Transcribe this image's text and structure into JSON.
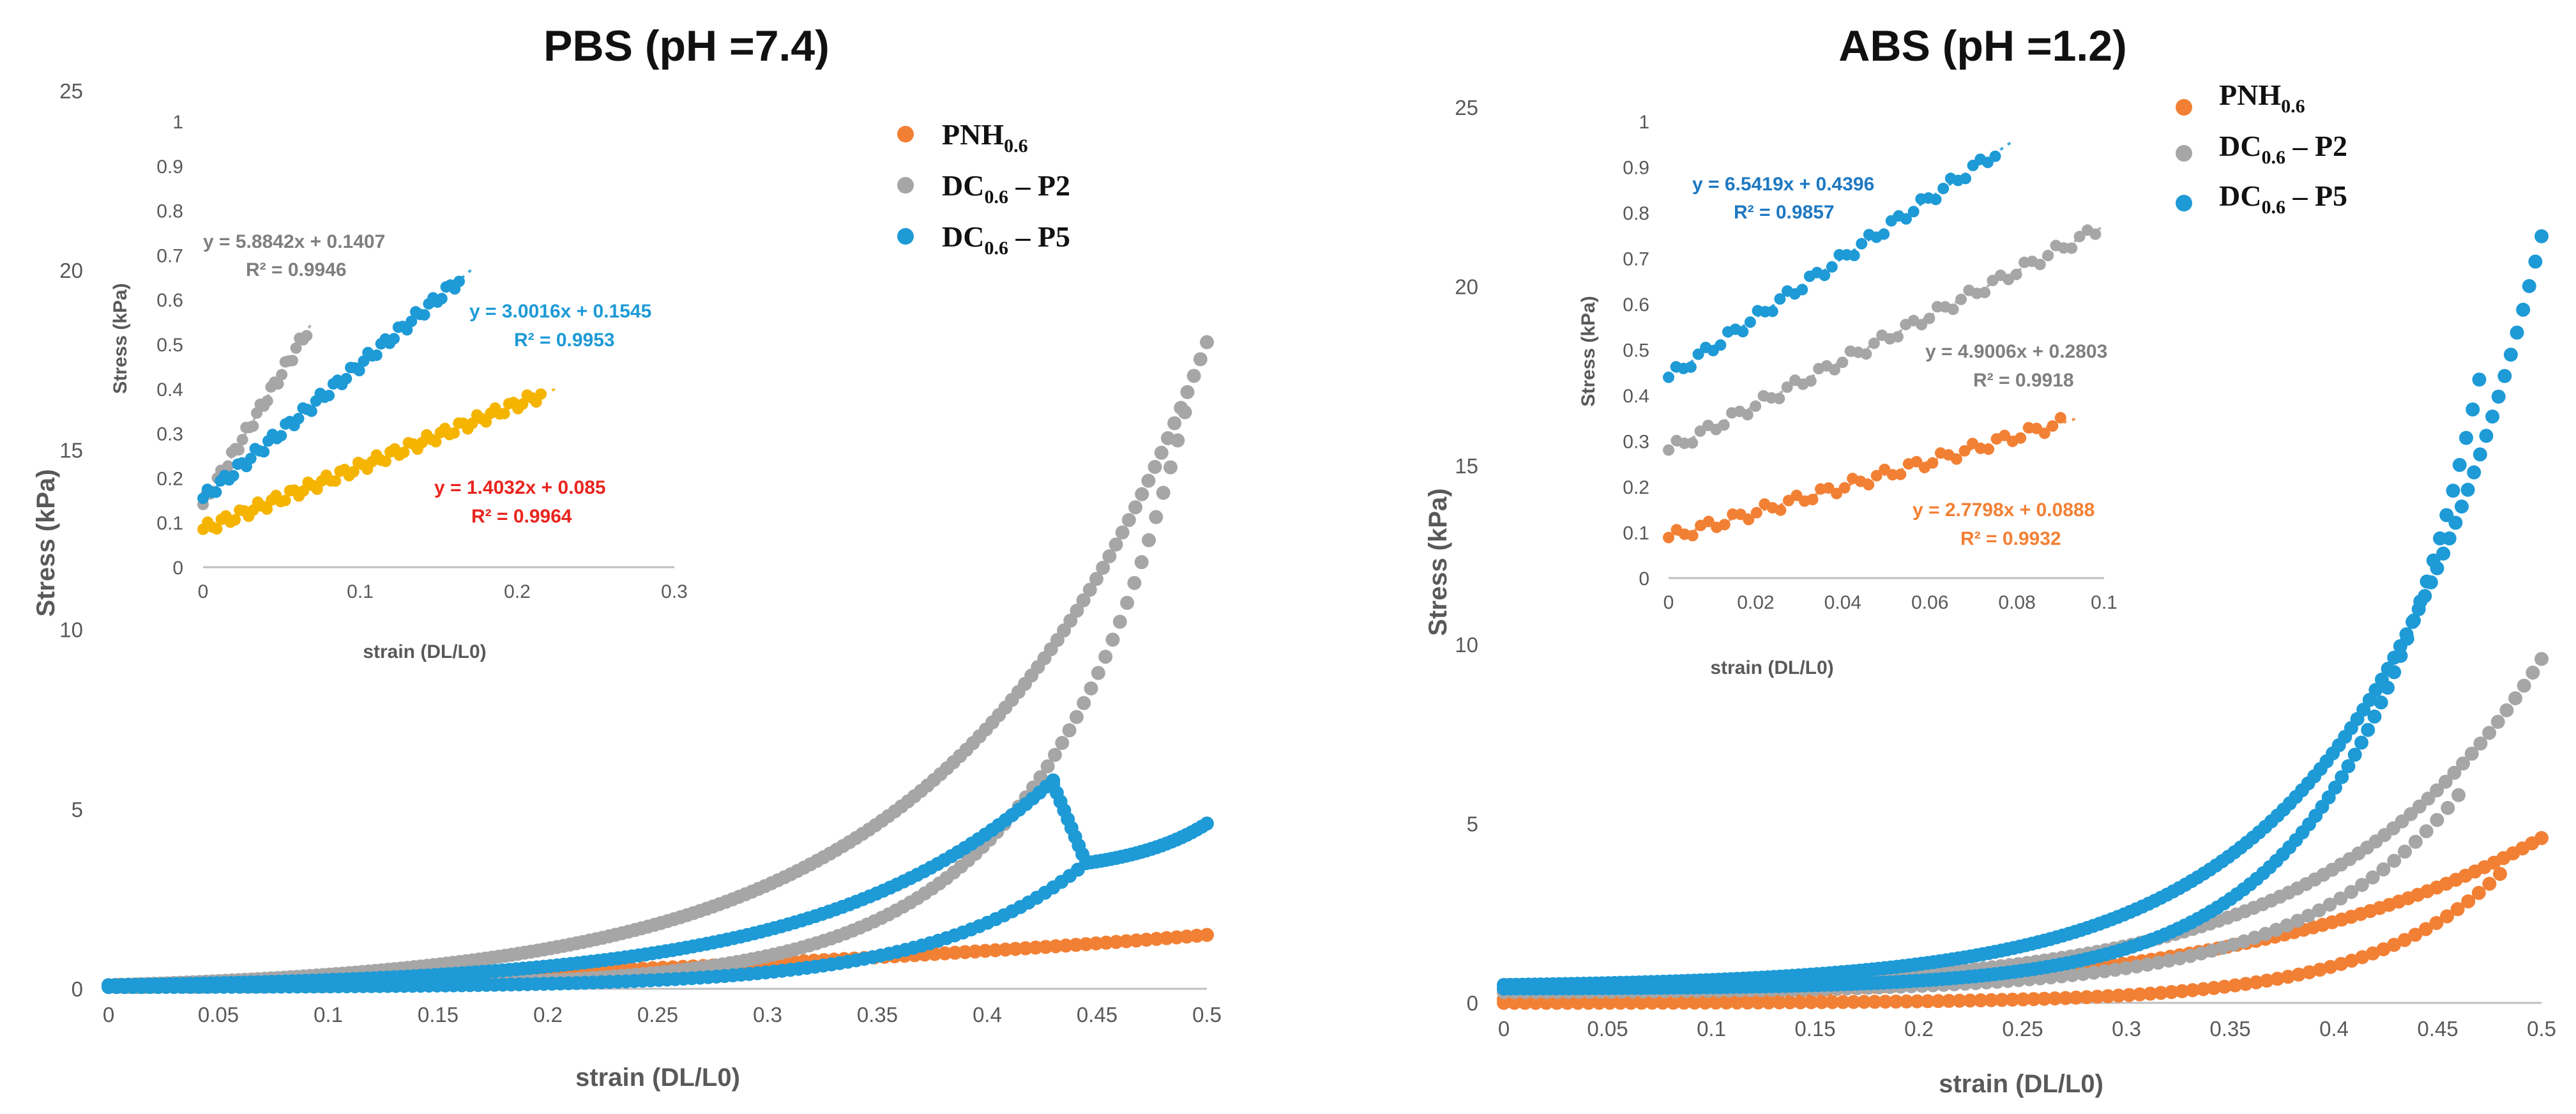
{
  "chart_data": [
    {
      "type": "scatter",
      "title": "PBS (pH =7.4)",
      "xlabel": "strain (DL/L0)",
      "ylabel": "Stress (kPa)",
      "xlim": [
        0,
        0.5
      ],
      "ylim": [
        0,
        25
      ],
      "x_ticks": [
        "0",
        "0.05",
        "0.1",
        "0.15",
        "0.2",
        "0.25",
        "0.3",
        "0.35",
        "0.4",
        "0.45",
        "0.5"
      ],
      "y_ticks": [
        "0",
        "5",
        "10",
        "15",
        "20",
        "25"
      ],
      "legend": [
        {
          "main": "PNH",
          "sub": "0.6",
          "suffix": "",
          "color": "#F28034"
        },
        {
          "main": "DC",
          "sub": "0.6",
          "suffix": " – P2",
          "color": "#A6A6A6"
        },
        {
          "main": "DC",
          "sub": "0.6",
          "suffix": " – P5",
          "color": "#1E9AD6"
        }
      ],
      "series": [
        {
          "name": "PNH0.6",
          "color": "#F28034",
          "curves": [
            {
              "x0": 0,
              "x1": 0.5,
              "a": 0.1,
              "b": 1.4,
              "k": 1.3,
              "n": 110
            }
          ]
        },
        {
          "name": "DC0.6 – P2",
          "color": "#A6A6A6",
          "curves": [
            {
              "x0": 0,
              "x1": 0.5,
              "a": 0.1,
              "b": 17.9,
              "k": 4.5,
              "n": 170
            },
            {
              "x0": 0,
              "x1": 0.49,
              "a": 0.05,
              "b": 16.0,
              "k": 7.5,
              "n": 150
            }
          ]
        },
        {
          "name": "DC0.6 – P5",
          "color": "#1E9AD6",
          "curves": [
            {
              "x0": 0,
              "x1": 0.43,
              "a": 0.1,
              "b": 5.7,
              "k": 4.2,
              "n": 140
            },
            {
              "x0": 0.43,
              "x1": 0.445,
              "a": 5.7,
              "b": -2.2,
              "k": 0.0001,
              "n": 10
            },
            {
              "x0": 0.445,
              "x1": 0.5,
              "a": 3.5,
              "b": 1.1,
              "k": 1.5,
              "n": 25
            },
            {
              "x0": 0,
              "x1": 0.445,
              "a": 0.05,
              "b": 3.45,
              "k": 6.5,
              "n": 120
            }
          ]
        }
      ],
      "inset": {
        "xlabel": "strain (DL/L0)",
        "ylabel": "Stress (kPa)",
        "xlim": [
          0,
          0.3
        ],
        "ylim": [
          0,
          1
        ],
        "x_ticks": [
          "0",
          "0.1",
          "0.2",
          "0.3"
        ],
        "y_ticks": [
          "0",
          "0.1",
          "0.2",
          "0.3",
          "0.4",
          "0.5",
          "0.6",
          "0.7",
          "0.8",
          "0.9",
          "1"
        ],
        "fits": [
          {
            "color": "#F5B400",
            "slope": 1.4032,
            "intercept": 0.085,
            "x_max": 0.215,
            "n": 75,
            "eq": "y = 1.4032x + 0.085",
            "r2": "R² = 0.9964",
            "label_color": "#E8251F"
          },
          {
            "color": "#A6A6A6",
            "slope": 5.8842,
            "intercept": 0.1407,
            "x_max": 0.066,
            "n": 30,
            "eq": "y = 5.8842x + 0.1407",
            "r2": "R² = 0.9946",
            "label_color": "#7F7F7F"
          },
          {
            "color": "#1E9AD6",
            "slope": 3.0016,
            "intercept": 0.1545,
            "x_max": 0.163,
            "n": 60,
            "eq": "y = 3.0016x + 0.1545",
            "r2": "R² = 0.9953",
            "label_color": "#1E9AD6"
          }
        ]
      }
    },
    {
      "type": "scatter",
      "title": "ABS (pH =1.2)",
      "xlabel": "strain (DL/L0)",
      "ylabel": "Stress (kPa)",
      "xlim": [
        0,
        0.5
      ],
      "ylim": [
        0,
        25
      ],
      "x_ticks": [
        "0",
        "0.05",
        "0.1",
        "0.15",
        "0.2",
        "0.25",
        "0.3",
        "0.35",
        "0.4",
        "0.45",
        "0.5"
      ],
      "y_ticks": [
        "0",
        "5",
        "10",
        "15",
        "20",
        "25"
      ],
      "legend": [
        {
          "main": "PNH",
          "sub": "0.6",
          "suffix": "",
          "color": "#F28034"
        },
        {
          "main": "DC",
          "sub": "0.6",
          "suffix": " – P2",
          "color": "#A6A6A6"
        },
        {
          "main": "DC",
          "sub": "0.6",
          "suffix": " – P5",
          "color": "#1E9AD6"
        }
      ],
      "series": [
        {
          "name": "PNH0.6",
          "color": "#F28034",
          "curves": [
            {
              "x0": 0,
              "x1": 0.5,
              "a": 0.1,
              "b": 4.5,
              "k": 3.5,
              "n": 110
            },
            {
              "x0": 0,
              "x1": 0.48,
              "a": 0.0,
              "b": 3.6,
              "k": 7.5,
              "n": 95
            }
          ]
        },
        {
          "name": "DC0.6 – P2",
          "color": "#A6A6A6",
          "curves": [
            {
              "x0": 0,
              "x1": 0.5,
              "a": 0.4,
              "b": 9.2,
              "k": 5.0,
              "n": 120
            },
            {
              "x0": 0,
              "x1": 0.46,
              "a": 0.3,
              "b": 5.5,
              "k": 6.0,
              "n": 90
            }
          ]
        },
        {
          "name": "DC0.6 – P5",
          "color": "#1E9AD6",
          "curves": [
            {
              "x0": 0,
              "x1": 0.5,
              "a": 0.5,
              "b": 20.9,
              "k": 5.8,
              "n": 170
            },
            {
              "x0": 0,
              "x1": 0.47,
              "a": 0.4,
              "b": 17.0,
              "k": 7.5,
              "n": 150
            }
          ]
        }
      ],
      "inset": {
        "xlabel": "strain (DL/L0)",
        "ylabel": "Stress (kPa)",
        "xlim": [
          0,
          0.1
        ],
        "ylim": [
          0,
          1
        ],
        "x_ticks": [
          "0",
          "0.02",
          "0.04",
          "0.06",
          "0.08",
          "0.1"
        ],
        "y_ticks": [
          "0",
          "0.1",
          "0.2",
          "0.3",
          "0.4",
          "0.5",
          "0.6",
          "0.7",
          "0.8",
          "0.9",
          "1"
        ],
        "fits": [
          {
            "color": "#1E9AD6",
            "slope": 6.5419,
            "intercept": 0.4396,
            "x_max": 0.075,
            "n": 45,
            "eq": "y = 6.5419x + 0.4396",
            "r2": "R² = 0.9857",
            "label_color": "#1E78C2"
          },
          {
            "color": "#A6A6A6",
            "slope": 4.9006,
            "intercept": 0.2803,
            "x_max": 0.098,
            "n": 55,
            "eq": "y = 4.9006x + 0.2803",
            "r2": "R² = 0.9918",
            "label_color": "#7F7F7F"
          },
          {
            "color": "#F28034",
            "slope": 2.7798,
            "intercept": 0.0888,
            "x_max": 0.09,
            "n": 50,
            "eq": "y = 2.7798x + 0.0888",
            "r2": "R² = 0.9932",
            "label_color": "#F28034"
          }
        ]
      }
    }
  ]
}
